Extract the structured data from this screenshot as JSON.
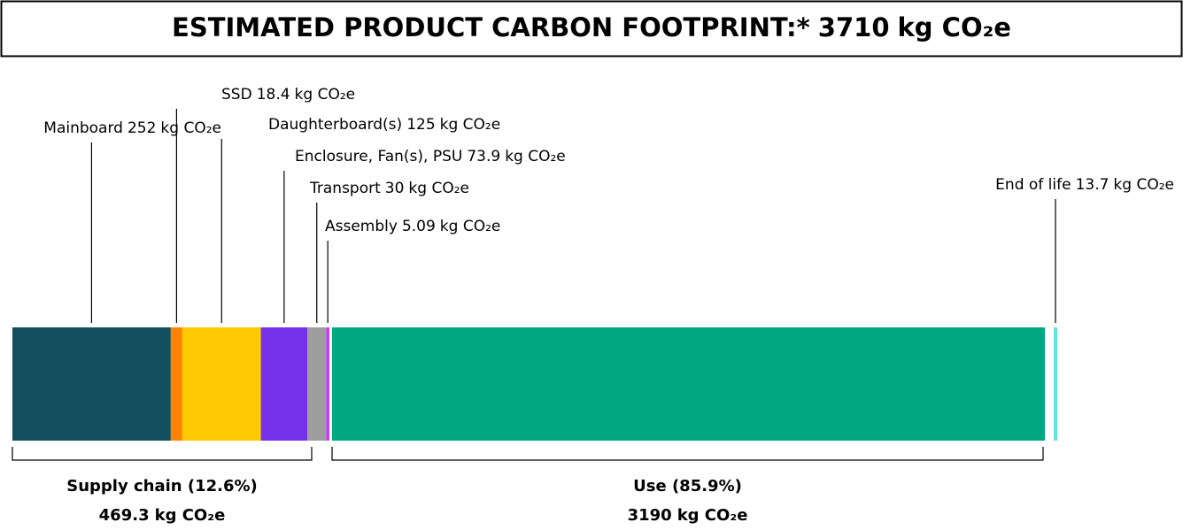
{
  "chart_data": {
    "type": "stacked-bar",
    "title": "ESTIMATED PRODUCT CARBON FOOTPRINT:*",
    "total": 3710,
    "unit": "kg CO₂e",
    "categories": [
      "Mainboard",
      "SSD",
      "Daughterboard(s)",
      "Enclosure, Fan(s), PSU",
      "Transport",
      "Assembly",
      "Use",
      "End of life"
    ],
    "values": [
      252,
      18.4,
      125,
      73.9,
      30,
      5.09,
      3190,
      13.7
    ],
    "colors": [
      "#134f5c",
      "#ff8300",
      "#fec901",
      "#7630ea",
      "#9e9e9e",
      "#d0d0d0",
      "#c140ff",
      "#01a982",
      "#62e5da"
    ],
    "groups": [
      {
        "name": "Supply chain (12.6%)",
        "value": 469.3
      },
      {
        "name": "Use (85.9%)",
        "value": 3190
      }
    ]
  }
}
